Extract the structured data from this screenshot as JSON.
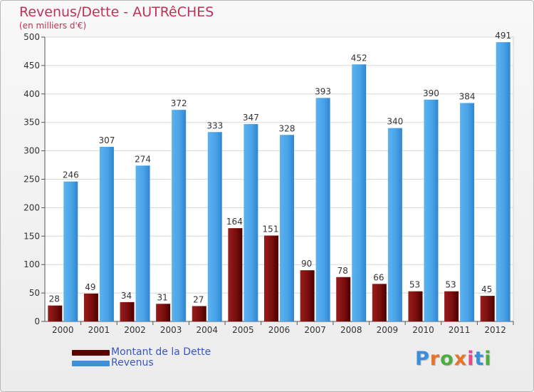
{
  "chart_data": {
    "type": "bar",
    "title": "Revenus/Dette - AUTRêCHES",
    "subtitle": "(en milliers d'€)",
    "categories": [
      "2000",
      "2001",
      "2002",
      "2003",
      "2004",
      "2005",
      "2006",
      "2007",
      "2008",
      "2009",
      "2010",
      "2011",
      "2012"
    ],
    "series": [
      {
        "name": "Montant de la Dette",
        "color": "#8b1010",
        "values": [
          28,
          49,
          34,
          31,
          27,
          164,
          151,
          90,
          78,
          66,
          53,
          53,
          45
        ]
      },
      {
        "name": "Revenus",
        "color": "#4aa3e8",
        "values": [
          246,
          307,
          274,
          372,
          333,
          347,
          328,
          393,
          452,
          340,
          390,
          384,
          491
        ]
      }
    ],
    "yticks": [
      0,
      50,
      100,
      150,
      200,
      250,
      300,
      350,
      400,
      450,
      500
    ],
    "ylim": [
      0,
      500
    ],
    "grid": true,
    "legend_position": "bottom-left"
  },
  "legend": {
    "items": [
      {
        "label": "Montant de la Dette",
        "color": "#5a0000"
      },
      {
        "label": "Revenus",
        "color": "#3f8fd8"
      }
    ]
  },
  "brand": {
    "letters": [
      "P",
      "r",
      "o",
      "x",
      "i",
      "t",
      "i"
    ],
    "colors": [
      "#3b8edb",
      "#e8742a",
      "#4cae3c",
      "#e8742a",
      "#e34a8a",
      "#3b8edb",
      "#4cae3c"
    ]
  }
}
